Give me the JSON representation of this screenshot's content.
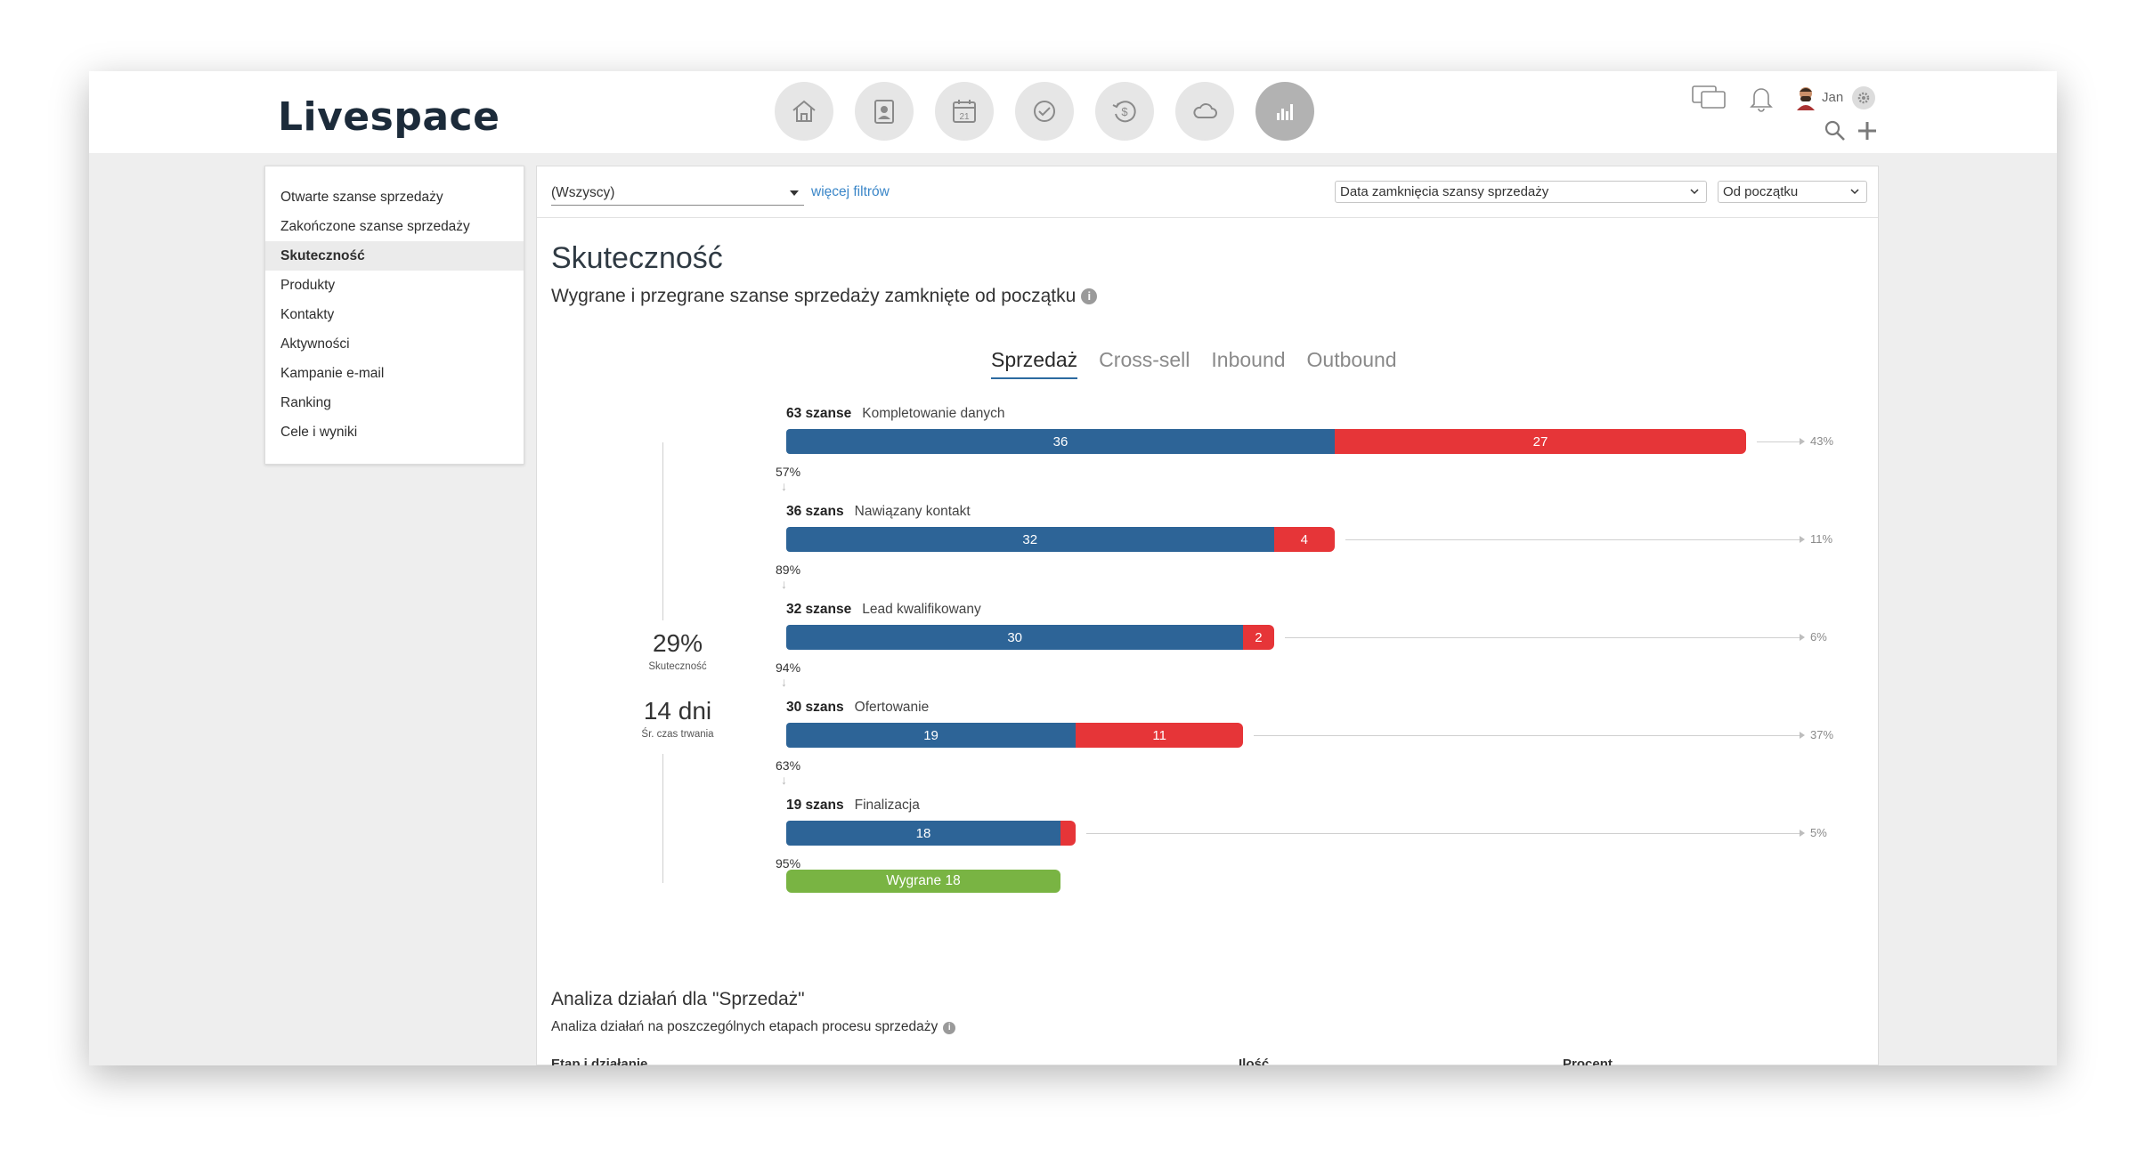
{
  "app": {
    "logo": "Livespace"
  },
  "nav": {
    "icons": [
      "home-icon",
      "contacts-icon",
      "calendar-icon",
      "tasks-icon",
      "deals-icon",
      "cloud-icon",
      "reports-icon"
    ],
    "calendar_day": "21"
  },
  "user": {
    "name": "Jan"
  },
  "sidebar": {
    "items": [
      {
        "label": "Otwarte szanse sprzedaży"
      },
      {
        "label": "Zakończone szanse sprzedaży"
      },
      {
        "label": "Skuteczność"
      },
      {
        "label": "Produkty"
      },
      {
        "label": "Kontakty"
      },
      {
        "label": "Aktywności"
      },
      {
        "label": "Kampanie e-mail"
      },
      {
        "label": "Ranking"
      },
      {
        "label": "Cele i wyniki"
      }
    ],
    "active_index": 2
  },
  "filters": {
    "owner": "(Wszyscy)",
    "more_filters": "więcej filtrów",
    "date_field": "Data zamknięcia szansy sprzedaży",
    "period": "Od początku"
  },
  "page": {
    "title": "Skuteczność",
    "subtitle": "Wygrane i przegrane szanse sprzedaży zamknięte od początku",
    "info_icon": "i"
  },
  "tabs": [
    {
      "label": "Sprzedaż",
      "active": true
    },
    {
      "label": "Cross-sell",
      "active": false
    },
    {
      "label": "Inbound",
      "active": false
    },
    {
      "label": "Outbound",
      "active": false
    }
  ],
  "summary": {
    "win_rate": "29%",
    "win_rate_label": "Skuteczność",
    "avg_duration": "14 dni",
    "avg_duration_label": "Śr. czas trwania"
  },
  "colors": {
    "won": "#2d6497",
    "lost": "#e63538",
    "final_won": "#79b443",
    "accent": "#3a86c8"
  },
  "chart_data": {
    "type": "bar",
    "stages": [
      {
        "count_label": "63 szanse",
        "name": "Kompletowanie danych",
        "won": 36,
        "lost": 27,
        "lost_pct": "43%",
        "conversion": "57%"
      },
      {
        "count_label": "36 szans",
        "name": "Nawiązany kontakt",
        "won": 32,
        "lost": 4,
        "lost_pct": "11%",
        "conversion": "89%"
      },
      {
        "count_label": "32 szanse",
        "name": "Lead kwalifikowany",
        "won": 30,
        "lost": 2,
        "lost_pct": "6%",
        "conversion": "94%"
      },
      {
        "count_label": "30 szans",
        "name": "Ofertowanie",
        "won": 19,
        "lost": 11,
        "lost_pct": "37%",
        "conversion": "63%"
      },
      {
        "count_label": "19 szans",
        "name": "Finalizacja",
        "won": 18,
        "lost": 1,
        "lost_pct": "5%",
        "conversion": "95%"
      }
    ],
    "final": {
      "label": "Wygrane 18",
      "value": 18
    },
    "max_total": 63
  },
  "analysis": {
    "title": "Analiza działań dla \"Sprzedaż\"",
    "subtitle": "Analiza działań na poszczególnych etapach procesu sprzedaży",
    "col1": "Etap i działanie",
    "col2": "Ilość",
    "col3": "Procent"
  }
}
